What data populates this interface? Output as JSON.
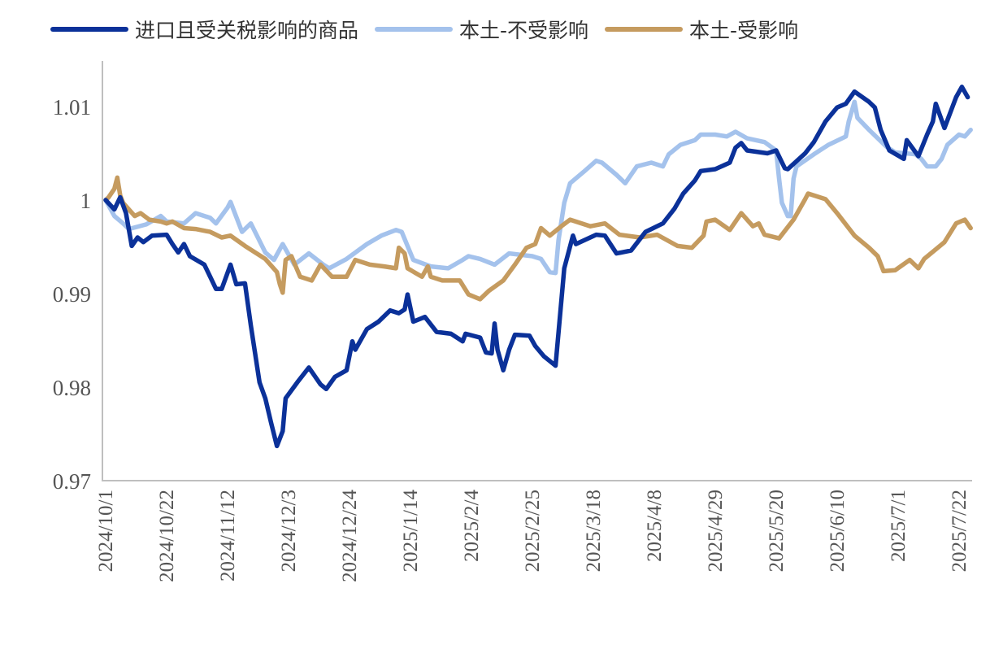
{
  "chart_data": {
    "type": "line",
    "title": "",
    "xlabel": "",
    "ylabel": "",
    "ylim": [
      0.97,
      1.013
    ],
    "yticks": [
      "0.97",
      "0.98",
      "0.99",
      "1",
      "1.01"
    ],
    "ytick_values": [
      0.97,
      0.98,
      0.99,
      1.0,
      1.01
    ],
    "x_unit": "days since 2024/10/1",
    "xlim": [
      0,
      298
    ],
    "xtick_step_days": 21,
    "xticks": [
      "2024/10/1",
      "2024/10/22",
      "2024/11/12",
      "2024/12/3",
      "2024/12/24",
      "2025/1/14",
      "2025/2/4",
      "2025/2/25",
      "2025/3/18",
      "2025/4/8",
      "2025/4/29",
      "2025/5/20",
      "2025/6/10",
      "2025/7/1",
      "2025/7/22"
    ],
    "legend_position": "top",
    "grid": false,
    "series": [
      {
        "name": "进口且受关税影响的商品",
        "color": "#0b3199",
        "points": [
          [
            0,
            1.0
          ],
          [
            3,
            0.999
          ],
          [
            5,
            1.0003
          ],
          [
            7,
            0.9986
          ],
          [
            9,
            0.9951
          ],
          [
            11,
            0.996
          ],
          [
            13,
            0.9955
          ],
          [
            16,
            0.9962
          ],
          [
            21,
            0.9963
          ],
          [
            23,
            0.9953
          ],
          [
            25,
            0.9944
          ],
          [
            27,
            0.9953
          ],
          [
            29,
            0.994
          ],
          [
            34,
            0.9931
          ],
          [
            36,
            0.9918
          ],
          [
            38,
            0.9905
          ],
          [
            40,
            0.9905
          ],
          [
            43,
            0.9931
          ],
          [
            45,
            0.991
          ],
          [
            48,
            0.9911
          ],
          [
            50,
            0.9866
          ],
          [
            53,
            0.9805
          ],
          [
            55,
            0.9788
          ],
          [
            57,
            0.9762
          ],
          [
            59,
            0.9737
          ],
          [
            61,
            0.9753
          ],
          [
            62,
            0.9788
          ],
          [
            66,
            0.9805
          ],
          [
            70,
            0.9821
          ],
          [
            74,
            0.9803
          ],
          [
            76,
            0.9798
          ],
          [
            79,
            0.9811
          ],
          [
            83,
            0.9818
          ],
          [
            85,
            0.9849
          ],
          [
            86,
            0.984
          ],
          [
            90,
            0.9862
          ],
          [
            94,
            0.987
          ],
          [
            98,
            0.9882
          ],
          [
            101,
            0.9879
          ],
          [
            103,
            0.9883
          ],
          [
            104,
            0.9899
          ],
          [
            106,
            0.987
          ],
          [
            110,
            0.9875
          ],
          [
            114,
            0.9859
          ],
          [
            119,
            0.9857
          ],
          [
            123,
            0.9849
          ],
          [
            124,
            0.9857
          ],
          [
            129,
            0.9853
          ],
          [
            131,
            0.9837
          ],
          [
            133,
            0.9836
          ],
          [
            134,
            0.9868
          ],
          [
            135,
            0.984
          ],
          [
            137,
            0.9818
          ],
          [
            139,
            0.984
          ],
          [
            141,
            0.9856
          ],
          [
            146,
            0.9855
          ],
          [
            148,
            0.9844
          ],
          [
            151,
            0.9833
          ],
          [
            155,
            0.9823
          ],
          [
            157,
            0.9892
          ],
          [
            158,
            0.9927
          ],
          [
            161,
            0.9962
          ],
          [
            162,
            0.9953
          ],
          [
            169,
            0.9963
          ],
          [
            172,
            0.9962
          ],
          [
            176,
            0.9943
          ],
          [
            181,
            0.9946
          ],
          [
            186,
            0.9966
          ],
          [
            192,
            0.9975
          ],
          [
            196,
            0.9991
          ],
          [
            199,
            1.0007
          ],
          [
            203,
            1.0021
          ],
          [
            205,
            1.0031
          ],
          [
            210,
            1.0033
          ],
          [
            215,
            1.004
          ],
          [
            217,
            1.0056
          ],
          [
            219,
            1.0061
          ],
          [
            221,
            1.0053
          ],
          [
            228,
            1.005
          ],
          [
            231,
            1.0053
          ],
          [
            234,
            1.0034
          ],
          [
            235,
            1.0033
          ],
          [
            241,
            1.005
          ],
          [
            244,
            1.0062
          ],
          [
            248,
            1.0084
          ],
          [
            252,
            1.0099
          ],
          [
            255,
            1.0103
          ],
          [
            258,
            1.0116
          ],
          [
            263,
            1.0105
          ],
          [
            265,
            1.0099
          ],
          [
            267,
            1.0075
          ],
          [
            270,
            1.0053
          ],
          [
            275,
            1.0044
          ],
          [
            276,
            1.0064
          ],
          [
            280,
            1.0047
          ],
          [
            283,
            1.007
          ],
          [
            285,
            1.0084
          ],
          [
            286,
            1.0103
          ],
          [
            289,
            1.0077
          ],
          [
            293,
            1.011
          ],
          [
            295,
            1.0121
          ],
          [
            297,
            1.011
          ]
        ]
      },
      {
        "name": "本土-不受影响",
        "color": "#a4c2ec",
        "points": [
          [
            0,
            1.0
          ],
          [
            3,
            0.9983
          ],
          [
            6,
            0.9975
          ],
          [
            8,
            0.9969
          ],
          [
            14,
            0.9974
          ],
          [
            19,
            0.9983
          ],
          [
            21,
            0.9977
          ],
          [
            27,
            0.9975
          ],
          [
            31,
            0.9986
          ],
          [
            36,
            0.9981
          ],
          [
            38,
            0.9975
          ],
          [
            42,
            0.9992
          ],
          [
            43,
            0.9998
          ],
          [
            47,
            0.9966
          ],
          [
            50,
            0.9975
          ],
          [
            55,
            0.9944
          ],
          [
            58,
            0.9936
          ],
          [
            61,
            0.9953
          ],
          [
            65,
            0.9931
          ],
          [
            70,
            0.9943
          ],
          [
            75,
            0.9931
          ],
          [
            77,
            0.9927
          ],
          [
            83,
            0.9937
          ],
          [
            90,
            0.9953
          ],
          [
            95,
            0.9962
          ],
          [
            100,
            0.9968
          ],
          [
            102,
            0.9966
          ],
          [
            106,
            0.9936
          ],
          [
            112,
            0.9929
          ],
          [
            118,
            0.9927
          ],
          [
            123,
            0.9936
          ],
          [
            125,
            0.994
          ],
          [
            129,
            0.9937
          ],
          [
            134,
            0.9931
          ],
          [
            139,
            0.9943
          ],
          [
            147,
            0.994
          ],
          [
            150,
            0.9937
          ],
          [
            153,
            0.9923
          ],
          [
            155,
            0.9922
          ],
          [
            156,
            0.9957
          ],
          [
            158,
            0.9997
          ],
          [
            160,
            1.0018
          ],
          [
            165,
            1.0031
          ],
          [
            169,
            1.0042
          ],
          [
            171,
            1.004
          ],
          [
            176,
            1.0027
          ],
          [
            179,
            1.0018
          ],
          [
            183,
            1.0036
          ],
          [
            188,
            1.004
          ],
          [
            192,
            1.0036
          ],
          [
            194,
            1.0049
          ],
          [
            198,
            1.0059
          ],
          [
            203,
            1.0064
          ],
          [
            205,
            1.007
          ],
          [
            210,
            1.007
          ],
          [
            214,
            1.0068
          ],
          [
            217,
            1.0073
          ],
          [
            221,
            1.0066
          ],
          [
            227,
            1.0062
          ],
          [
            231,
            1.0053
          ],
          [
            232,
            1.0023
          ],
          [
            233,
            0.9997
          ],
          [
            235,
            0.9983
          ],
          [
            236,
            0.9983
          ],
          [
            237,
            1.0023
          ],
          [
            238,
            1.0036
          ],
          [
            244,
            1.0049
          ],
          [
            249,
            1.0059
          ],
          [
            255,
            1.0068
          ],
          [
            256,
            1.0084
          ],
          [
            258,
            1.0105
          ],
          [
            259,
            1.0088
          ],
          [
            263,
            1.0075
          ],
          [
            269,
            1.0057
          ],
          [
            272,
            1.0051
          ],
          [
            279,
            1.0049
          ],
          [
            281,
            1.0044
          ],
          [
            283,
            1.0036
          ],
          [
            286,
            1.0036
          ],
          [
            288,
            1.0044
          ],
          [
            290,
            1.0059
          ],
          [
            294,
            1.007
          ],
          [
            296,
            1.0068
          ],
          [
            298,
            1.0075
          ]
        ]
      },
      {
        "name": "本土-受影响",
        "color": "#c59b5f",
        "points": [
          [
            0,
            1.0
          ],
          [
            1,
            1.0003
          ],
          [
            3,
            1.0012
          ],
          [
            4,
            1.0024
          ],
          [
            5,
            1.0005
          ],
          [
            6,
            0.9997
          ],
          [
            10,
            0.9983
          ],
          [
            12,
            0.9986
          ],
          [
            15,
            0.9979
          ],
          [
            19,
            0.9977
          ],
          [
            21,
            0.9975
          ],
          [
            23,
            0.9977
          ],
          [
            27,
            0.997
          ],
          [
            31,
            0.9969
          ],
          [
            36,
            0.9966
          ],
          [
            40,
            0.996
          ],
          [
            43,
            0.9962
          ],
          [
            48,
            0.9951
          ],
          [
            52,
            0.9943
          ],
          [
            55,
            0.9937
          ],
          [
            59,
            0.9923
          ],
          [
            60,
            0.991
          ],
          [
            61,
            0.9901
          ],
          [
            62,
            0.9936
          ],
          [
            64,
            0.994
          ],
          [
            67,
            0.9918
          ],
          [
            71,
            0.9914
          ],
          [
            74,
            0.9931
          ],
          [
            78,
            0.9918
          ],
          [
            83,
            0.9918
          ],
          [
            86,
            0.9936
          ],
          [
            91,
            0.9931
          ],
          [
            96,
            0.9929
          ],
          [
            100,
            0.9927
          ],
          [
            101,
            0.9949
          ],
          [
            103,
            0.9943
          ],
          [
            104,
            0.9927
          ],
          [
            109,
            0.9918
          ],
          [
            111,
            0.9929
          ],
          [
            112,
            0.9918
          ],
          [
            116,
            0.9914
          ],
          [
            122,
            0.9914
          ],
          [
            125,
            0.9899
          ],
          [
            129,
            0.9894
          ],
          [
            132,
            0.9903
          ],
          [
            137,
            0.9914
          ],
          [
            141,
            0.9931
          ],
          [
            145,
            0.9949
          ],
          [
            148,
            0.9953
          ],
          [
            150,
            0.997
          ],
          [
            153,
            0.9962
          ],
          [
            157,
            0.9972
          ],
          [
            160,
            0.9979
          ],
          [
            167,
            0.9972
          ],
          [
            172,
            0.9975
          ],
          [
            177,
            0.9963
          ],
          [
            184,
            0.996
          ],
          [
            190,
            0.9963
          ],
          [
            197,
            0.9951
          ],
          [
            202,
            0.9949
          ],
          [
            206,
            0.9962
          ],
          [
            207,
            0.9977
          ],
          [
            210,
            0.9979
          ],
          [
            215,
            0.9968
          ],
          [
            219,
            0.9986
          ],
          [
            223,
            0.9972
          ],
          [
            225,
            0.9975
          ],
          [
            227,
            0.9963
          ],
          [
            232,
            0.9959
          ],
          [
            237,
            0.9979
          ],
          [
            241,
            1.0001
          ],
          [
            242,
            1.0007
          ],
          [
            248,
            1.0001
          ],
          [
            252,
            0.9986
          ],
          [
            258,
            0.9962
          ],
          [
            263,
            0.9949
          ],
          [
            266,
            0.994
          ],
          [
            268,
            0.9924
          ],
          [
            272,
            0.9925
          ],
          [
            277,
            0.9936
          ],
          [
            280,
            0.9927
          ],
          [
            282,
            0.9937
          ],
          [
            289,
            0.9955
          ],
          [
            293,
            0.9975
          ],
          [
            296,
            0.9979
          ],
          [
            298,
            0.997
          ]
        ]
      }
    ]
  }
}
